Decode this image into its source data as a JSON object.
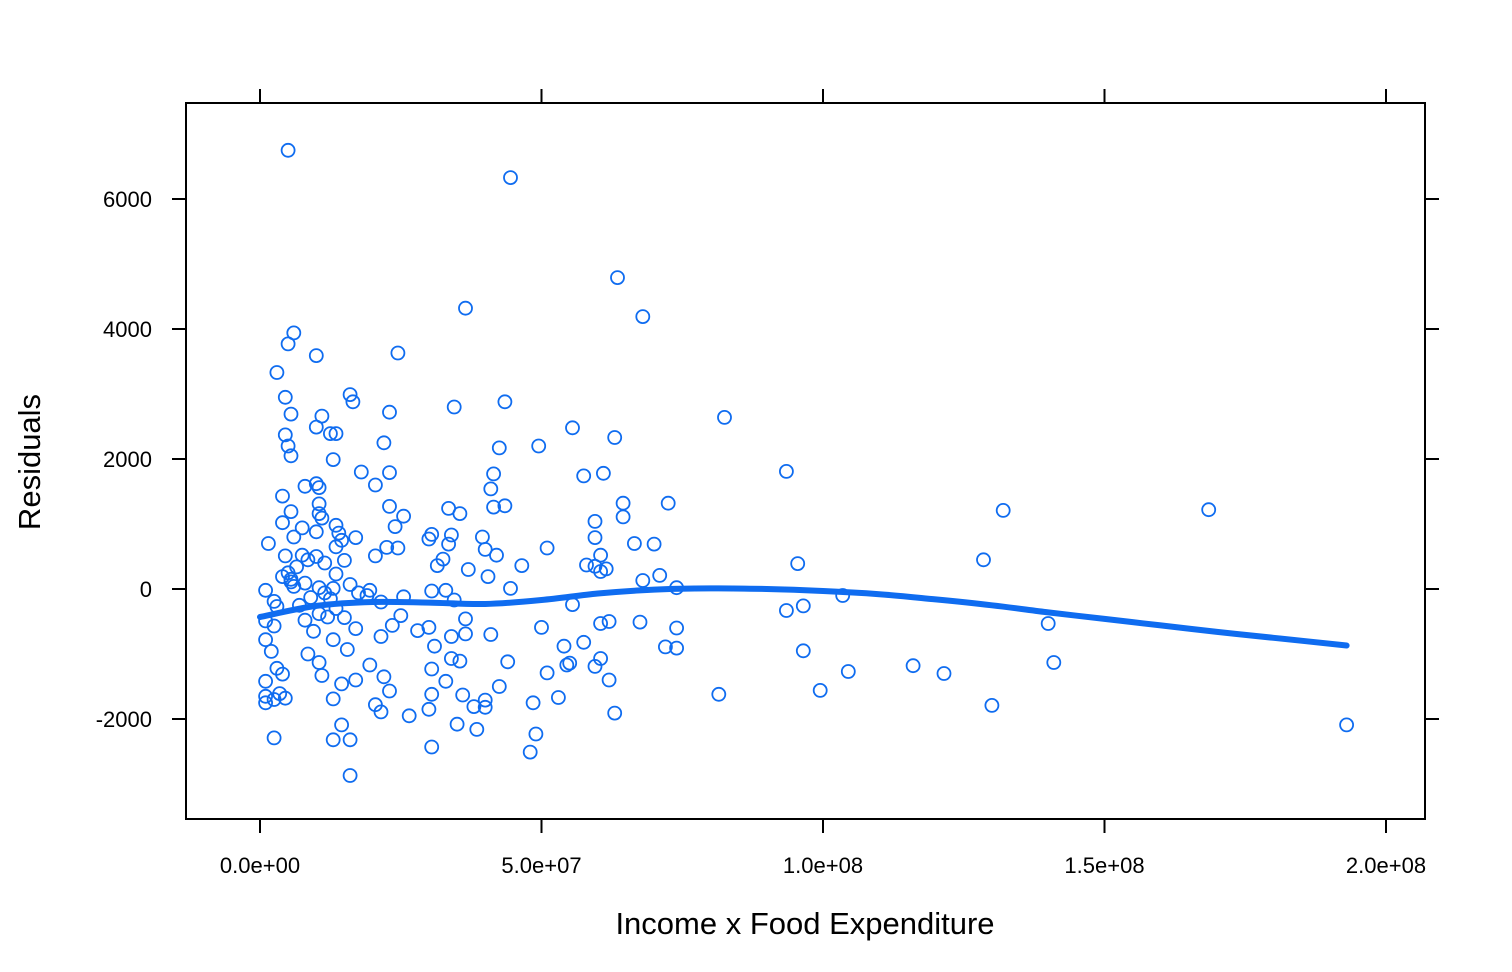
{
  "chart_data": {
    "type": "scatter",
    "title": "",
    "xlabel": "Income x Food Expenditure",
    "ylabel": "Residuals",
    "xlim": [
      -13000000,
      207000000
    ],
    "ylim": [
      -3550000,
      7450
    ],
    "ylim_note": "",
    "x_ticks": [
      0,
      50000000,
      100000000,
      150000000,
      200000000
    ],
    "x_tick_labels": [
      "0.0e+00",
      "5.0e+07",
      "1.0e+08",
      "1.5e+08",
      "2.0e+08"
    ],
    "y_ticks": [
      -2000,
      0,
      2000,
      4000,
      6000
    ],
    "y_tick_labels": [
      "-2000",
      "0",
      "2000",
      "4000",
      "6000"
    ],
    "grid": false,
    "point_color": "#0f6cf0",
    "smooth_color": "#0f6cf0",
    "smooth": {
      "x": [
        0,
        10000000,
        20000000,
        30000000,
        40000000,
        50000000,
        60000000,
        70000000,
        80000000,
        90000000,
        100000000,
        110000000,
        120000000,
        130000000,
        140000000,
        150000000,
        160000000,
        170000000,
        180000000,
        193000000
      ],
      "y": [
        -430,
        -260,
        -200,
        -210,
        -230,
        -170,
        -70,
        -10,
        10,
        0,
        -30,
        -80,
        -160,
        -250,
        -360,
        -460,
        -560,
        -660,
        -750,
        -870
      ]
    },
    "points": [
      {
        "x": 5000000,
        "y": 6750
      },
      {
        "x": 44500000,
        "y": 6330
      },
      {
        "x": 63500000,
        "y": 4790
      },
      {
        "x": 36500000,
        "y": 4320
      },
      {
        "x": 68000000,
        "y": 4190
      },
      {
        "x": 6000000,
        "y": 3940
      },
      {
        "x": 5000000,
        "y": 3770
      },
      {
        "x": 24500000,
        "y": 3630
      },
      {
        "x": 10000000,
        "y": 3590
      },
      {
        "x": 3000000,
        "y": 3330
      },
      {
        "x": 16000000,
        "y": 2990
      },
      {
        "x": 4500000,
        "y": 2950
      },
      {
        "x": 16500000,
        "y": 2880
      },
      {
        "x": 43500000,
        "y": 2880
      },
      {
        "x": 34500000,
        "y": 2800
      },
      {
        "x": 23000000,
        "y": 2720
      },
      {
        "x": 5500000,
        "y": 2690
      },
      {
        "x": 11000000,
        "y": 2660
      },
      {
        "x": 82500000,
        "y": 2640
      },
      {
        "x": 10000000,
        "y": 2490
      },
      {
        "x": 55500000,
        "y": 2480
      },
      {
        "x": 12500000,
        "y": 2390
      },
      {
        "x": 13500000,
        "y": 2390
      },
      {
        "x": 4500000,
        "y": 2370
      },
      {
        "x": 63000000,
        "y": 2330
      },
      {
        "x": 22000000,
        "y": 2250
      },
      {
        "x": 5000000,
        "y": 2200
      },
      {
        "x": 49500000,
        "y": 2200
      },
      {
        "x": 42500000,
        "y": 2170
      },
      {
        "x": 5500000,
        "y": 2050
      },
      {
        "x": 13000000,
        "y": 1990
      },
      {
        "x": 93500000,
        "y": 1810
      },
      {
        "x": 18000000,
        "y": 1800
      },
      {
        "x": 23000000,
        "y": 1790
      },
      {
        "x": 41500000,
        "y": 1770
      },
      {
        "x": 61000000,
        "y": 1780
      },
      {
        "x": 57500000,
        "y": 1740
      },
      {
        "x": 10000000,
        "y": 1620
      },
      {
        "x": 20500000,
        "y": 1600
      },
      {
        "x": 8000000,
        "y": 1580
      },
      {
        "x": 10500000,
        "y": 1560
      },
      {
        "x": 41000000,
        "y": 1540
      },
      {
        "x": 4000000,
        "y": 1430
      },
      {
        "x": 64500000,
        "y": 1320
      },
      {
        "x": 10500000,
        "y": 1310
      },
      {
        "x": 72500000,
        "y": 1320
      },
      {
        "x": 43500000,
        "y": 1280
      },
      {
        "x": 41500000,
        "y": 1260
      },
      {
        "x": 23000000,
        "y": 1270
      },
      {
        "x": 33500000,
        "y": 1240
      },
      {
        "x": 168500000,
        "y": 1220
      },
      {
        "x": 132000000,
        "y": 1210
      },
      {
        "x": 5500000,
        "y": 1190
      },
      {
        "x": 10500000,
        "y": 1160
      },
      {
        "x": 35500000,
        "y": 1160
      },
      {
        "x": 64500000,
        "y": 1110
      },
      {
        "x": 25500000,
        "y": 1120
      },
      {
        "x": 11000000,
        "y": 1090
      },
      {
        "x": 59500000,
        "y": 1040
      },
      {
        "x": 4000000,
        "y": 1020
      },
      {
        "x": 13500000,
        "y": 980
      },
      {
        "x": 24000000,
        "y": 960
      },
      {
        "x": 7500000,
        "y": 940
      },
      {
        "x": 10000000,
        "y": 880
      },
      {
        "x": 14000000,
        "y": 860
      },
      {
        "x": 30500000,
        "y": 840
      },
      {
        "x": 34000000,
        "y": 830
      },
      {
        "x": 6000000,
        "y": 800
      },
      {
        "x": 17000000,
        "y": 790
      },
      {
        "x": 39500000,
        "y": 800
      },
      {
        "x": 59500000,
        "y": 790
      },
      {
        "x": 30000000,
        "y": 770
      },
      {
        "x": 14500000,
        "y": 750
      },
      {
        "x": 1500000,
        "y": 700
      },
      {
        "x": 33500000,
        "y": 690
      },
      {
        "x": 66500000,
        "y": 700
      },
      {
        "x": 70000000,
        "y": 690
      },
      {
        "x": 13500000,
        "y": 650
      },
      {
        "x": 22500000,
        "y": 640
      },
      {
        "x": 51000000,
        "y": 630
      },
      {
        "x": 24500000,
        "y": 630
      },
      {
        "x": 40000000,
        "y": 610
      },
      {
        "x": 60500000,
        "y": 520
      },
      {
        "x": 7500000,
        "y": 520
      },
      {
        "x": 42000000,
        "y": 520
      },
      {
        "x": 4500000,
        "y": 510
      },
      {
        "x": 20500000,
        "y": 510
      },
      {
        "x": 10000000,
        "y": 500
      },
      {
        "x": 32500000,
        "y": 460
      },
      {
        "x": 8500000,
        "y": 450
      },
      {
        "x": 15000000,
        "y": 440
      },
      {
        "x": 128500000,
        "y": 450
      },
      {
        "x": 11500000,
        "y": 400
      },
      {
        "x": 95500000,
        "y": 390
      },
      {
        "x": 58000000,
        "y": 370
      },
      {
        "x": 31500000,
        "y": 360
      },
      {
        "x": 46500000,
        "y": 360
      },
      {
        "x": 59500000,
        "y": 350
      },
      {
        "x": 6500000,
        "y": 340
      },
      {
        "x": 61500000,
        "y": 310
      },
      {
        "x": 37000000,
        "y": 300
      },
      {
        "x": 60500000,
        "y": 270
      },
      {
        "x": 5000000,
        "y": 250
      },
      {
        "x": 13500000,
        "y": 230
      },
      {
        "x": 71000000,
        "y": 210
      },
      {
        "x": 4000000,
        "y": 190
      },
      {
        "x": 40500000,
        "y": 190
      },
      {
        "x": 5500000,
        "y": 150
      },
      {
        "x": 68000000,
        "y": 130
      },
      {
        "x": 5500000,
        "y": 110
      },
      {
        "x": 8000000,
        "y": 90
      },
      {
        "x": 16000000,
        "y": 70
      },
      {
        "x": 6000000,
        "y": 40
      },
      {
        "x": 10500000,
        "y": 20
      },
      {
        "x": 74000000,
        "y": 20
      },
      {
        "x": 13000000,
        "y": 10
      },
      {
        "x": 44500000,
        "y": 10
      },
      {
        "x": 1000000,
        "y": -20
      },
      {
        "x": 19500000,
        "y": -20
      },
      {
        "x": 30500000,
        "y": -30
      },
      {
        "x": 33000000,
        "y": -20
      },
      {
        "x": 11500000,
        "y": -60
      },
      {
        "x": 17500000,
        "y": -60
      },
      {
        "x": 19000000,
        "y": -100
      },
      {
        "x": 103500000,
        "y": -100
      },
      {
        "x": 25500000,
        "y": -120
      },
      {
        "x": 9000000,
        "y": -130
      },
      {
        "x": 12500000,
        "y": -150
      },
      {
        "x": 34500000,
        "y": -170
      },
      {
        "x": 2500000,
        "y": -190
      },
      {
        "x": 21500000,
        "y": -200
      },
      {
        "x": 55500000,
        "y": -240
      },
      {
        "x": 7000000,
        "y": -250
      },
      {
        "x": 96500000,
        "y": -260
      },
      {
        "x": 3000000,
        "y": -270
      },
      {
        "x": 13500000,
        "y": -300
      },
      {
        "x": 93500000,
        "y": -330
      },
      {
        "x": 10500000,
        "y": -380
      },
      {
        "x": 25000000,
        "y": -410
      },
      {
        "x": 12000000,
        "y": -430
      },
      {
        "x": 15000000,
        "y": -440
      },
      {
        "x": 36500000,
        "y": -460
      },
      {
        "x": 8000000,
        "y": -480
      },
      {
        "x": 1000000,
        "y": -490
      },
      {
        "x": 62000000,
        "y": -500
      },
      {
        "x": 67500000,
        "y": -510
      },
      {
        "x": 140000000,
        "y": -530
      },
      {
        "x": 60500000,
        "y": -530
      },
      {
        "x": 23500000,
        "y": -560
      },
      {
        "x": 2500000,
        "y": -570
      },
      {
        "x": 50000000,
        "y": -590
      },
      {
        "x": 30000000,
        "y": -590
      },
      {
        "x": 74000000,
        "y": -600
      },
      {
        "x": 17000000,
        "y": -610
      },
      {
        "x": 28000000,
        "y": -640
      },
      {
        "x": 9500000,
        "y": -650
      },
      {
        "x": 36500000,
        "y": -690
      },
      {
        "x": 41000000,
        "y": -700
      },
      {
        "x": 34000000,
        "y": -730
      },
      {
        "x": 21500000,
        "y": -730
      },
      {
        "x": 1000000,
        "y": -780
      },
      {
        "x": 13000000,
        "y": -780
      },
      {
        "x": 57500000,
        "y": -820
      },
      {
        "x": 31000000,
        "y": -880
      },
      {
        "x": 54000000,
        "y": -880
      },
      {
        "x": 72000000,
        "y": -890
      },
      {
        "x": 74000000,
        "y": -910
      },
      {
        "x": 15500000,
        "y": -930
      },
      {
        "x": 2000000,
        "y": -960
      },
      {
        "x": 96500000,
        "y": -950
      },
      {
        "x": 8500000,
        "y": -1000
      },
      {
        "x": 34000000,
        "y": -1070
      },
      {
        "x": 60500000,
        "y": -1070
      },
      {
        "x": 35500000,
        "y": -1110
      },
      {
        "x": 44000000,
        "y": -1120
      },
      {
        "x": 10500000,
        "y": -1130
      },
      {
        "x": 55000000,
        "y": -1140
      },
      {
        "x": 141000000,
        "y": -1130
      },
      {
        "x": 54500000,
        "y": -1170
      },
      {
        "x": 19500000,
        "y": -1170
      },
      {
        "x": 116000000,
        "y": -1180
      },
      {
        "x": 59500000,
        "y": -1190
      },
      {
        "x": 3000000,
        "y": -1220
      },
      {
        "x": 30500000,
        "y": -1230
      },
      {
        "x": 104500000,
        "y": -1270
      },
      {
        "x": 51000000,
        "y": -1290
      },
      {
        "x": 121500000,
        "y": -1300
      },
      {
        "x": 4000000,
        "y": -1310
      },
      {
        "x": 11000000,
        "y": -1330
      },
      {
        "x": 22000000,
        "y": -1350
      },
      {
        "x": 17000000,
        "y": -1400
      },
      {
        "x": 62000000,
        "y": -1400
      },
      {
        "x": 33000000,
        "y": -1420
      },
      {
        "x": 1000000,
        "y": -1420
      },
      {
        "x": 14500000,
        "y": -1460
      },
      {
        "x": 42500000,
        "y": -1500
      },
      {
        "x": 99500000,
        "y": -1560
      },
      {
        "x": 23000000,
        "y": -1570
      },
      {
        "x": 3500000,
        "y": -1610
      },
      {
        "x": 81500000,
        "y": -1620
      },
      {
        "x": 30500000,
        "y": -1620
      },
      {
        "x": 36000000,
        "y": -1630
      },
      {
        "x": 1000000,
        "y": -1650
      },
      {
        "x": 53000000,
        "y": -1670
      },
      {
        "x": 4500000,
        "y": -1680
      },
      {
        "x": 13000000,
        "y": -1690
      },
      {
        "x": 2500000,
        "y": -1700
      },
      {
        "x": 40000000,
        "y": -1710
      },
      {
        "x": 1000000,
        "y": -1750
      },
      {
        "x": 48500000,
        "y": -1750
      },
      {
        "x": 20500000,
        "y": -1780
      },
      {
        "x": 130000000,
        "y": -1790
      },
      {
        "x": 38000000,
        "y": -1810
      },
      {
        "x": 40000000,
        "y": -1820
      },
      {
        "x": 30000000,
        "y": -1850
      },
      {
        "x": 21500000,
        "y": -1890
      },
      {
        "x": 63000000,
        "y": -1910
      },
      {
        "x": 26500000,
        "y": -1950
      },
      {
        "x": 35000000,
        "y": -2080
      },
      {
        "x": 14500000,
        "y": -2090
      },
      {
        "x": 193000000,
        "y": -2090
      },
      {
        "x": 38500000,
        "y": -2160
      },
      {
        "x": 49000000,
        "y": -2230
      },
      {
        "x": 2500000,
        "y": -2290
      },
      {
        "x": 13000000,
        "y": -2320
      },
      {
        "x": 16000000,
        "y": -2320
      },
      {
        "x": 30500000,
        "y": -2430
      },
      {
        "x": 48000000,
        "y": -2510
      },
      {
        "x": 16000000,
        "y": -2870
      }
    ]
  }
}
